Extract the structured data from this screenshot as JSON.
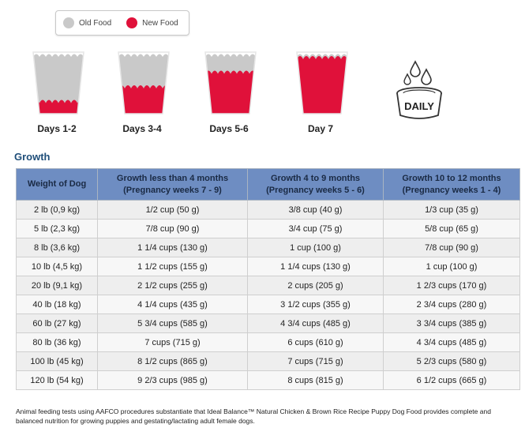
{
  "legend": {
    "old_label": "Old Food",
    "new_label": "New Food"
  },
  "colors": {
    "old_food": "#c9c9c9",
    "new_food": "#e0113a",
    "header_bg": "#6e8dc2",
    "title": "#1f4e79"
  },
  "cups": [
    {
      "label": "Days 1-2",
      "new_food_fraction": 0.25
    },
    {
      "label": "Days 3-4",
      "new_food_fraction": 0.5
    },
    {
      "label": "Days 5-6",
      "new_food_fraction": 0.75
    },
    {
      "label": "Day 7",
      "new_food_fraction": 1.0
    }
  ],
  "daily_icon": {
    "label": "DAILY",
    "icon": "water-bowl-icon"
  },
  "section": {
    "title": "Growth"
  },
  "table": {
    "headers": [
      {
        "line1": "Weight of Dog",
        "line2": ""
      },
      {
        "line1": "Growth less than 4 months",
        "line2": "(Pregnancy weeks 7 - 9)"
      },
      {
        "line1": "Growth 4 to 9 months",
        "line2": "(Pregnancy weeks 5 - 6)"
      },
      {
        "line1": "Growth 10 to 12 months",
        "line2": "(Pregnancy weeks 1 - 4)"
      }
    ],
    "rows": [
      [
        "2 lb (0,9 kg)",
        "1/2 cup (50 g)",
        "3/8 cup (40 g)",
        "1/3 cup (35 g)"
      ],
      [
        "5 lb (2,3 kg)",
        "7/8 cup (90 g)",
        "3/4 cup (75 g)",
        "5/8 cup (65 g)"
      ],
      [
        "8 lb (3,6 kg)",
        "1 1/4 cups (130 g)",
        "1 cup (100 g)",
        "7/8 cup (90 g)"
      ],
      [
        "10 lb (4,5 kg)",
        "1 1/2 cups (155 g)",
        "1 1/4 cups (130 g)",
        "1 cup (100 g)"
      ],
      [
        "20 lb (9,1 kg)",
        "2 1/2 cups (255 g)",
        "2 cups (205 g)",
        "1 2/3 cups (170 g)"
      ],
      [
        "40 lb (18 kg)",
        "4 1/4 cups (435 g)",
        "3 1/2 cups (355 g)",
        "2 3/4 cups (280 g)"
      ],
      [
        "60 lb (27 kg)",
        "5 3/4 cups (585 g)",
        "4 3/4 cups (485 g)",
        "3 3/4 cups (385 g)"
      ],
      [
        "80 lb (36 kg)",
        "7 cups (715 g)",
        "6 cups (610 g)",
        "4 3/4 cups (485 g)"
      ],
      [
        "100 lb (45 kg)",
        "8 1/2 cups (865 g)",
        "7 cups (715 g)",
        "5 2/3 cups (580 g)"
      ],
      [
        "120 lb (54 kg)",
        "9 2/3 cups (985 g)",
        "8 cups (815 g)",
        "6 1/2 cups (665 g)"
      ]
    ]
  },
  "footnote": "Animal feeding tests using AAFCO procedures substantiate that Ideal Balance™ Natural Chicken & Brown Rice Recipe Puppy Dog Food provides complete and balanced nutrition for growing puppies and gestating/lactating adult female dogs."
}
